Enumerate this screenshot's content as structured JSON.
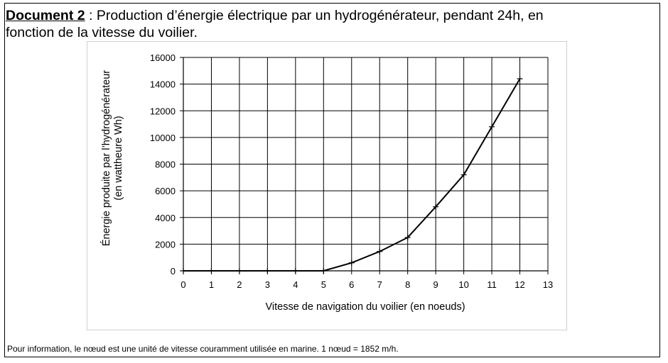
{
  "document": {
    "label": "Document 2",
    "title_line1": " : Production d’énergie électrique par un hydrogénérateur, pendant 24h, en",
    "title_line2": "fonction de la vitesse du voilier.",
    "footnote": "Pour information, le nœud est une unité de vitesse couramment utilisée en marine. 1 nœud = 1852 m/h."
  },
  "chart_data": {
    "type": "line",
    "title": "",
    "xlabel": "Vitesse de navigation du voilier (en noeuds)",
    "ylabel_line1": "Énergie produite par l’hydrogénérateur",
    "ylabel_line2": "(en wattheure Wh)",
    "xlim": [
      0,
      13
    ],
    "ylim": [
      0,
      16000
    ],
    "x_ticks": [
      0,
      1,
      2,
      3,
      4,
      5,
      6,
      7,
      8,
      9,
      10,
      11,
      12,
      13
    ],
    "y_ticks": [
      0,
      2000,
      4000,
      6000,
      8000,
      10000,
      12000,
      14000,
      16000
    ],
    "grid": true,
    "legend": "none",
    "marker": "plus",
    "line_color": "#000000",
    "series": [
      {
        "x": [
          0,
          1,
          2,
          3,
          4,
          5,
          6,
          7,
          8,
          9,
          10,
          11,
          12
        ],
        "y": [
          0,
          0,
          0,
          0,
          0,
          0,
          600,
          1450,
          2500,
          4800,
          7200,
          10800,
          14400
        ]
      }
    ]
  }
}
